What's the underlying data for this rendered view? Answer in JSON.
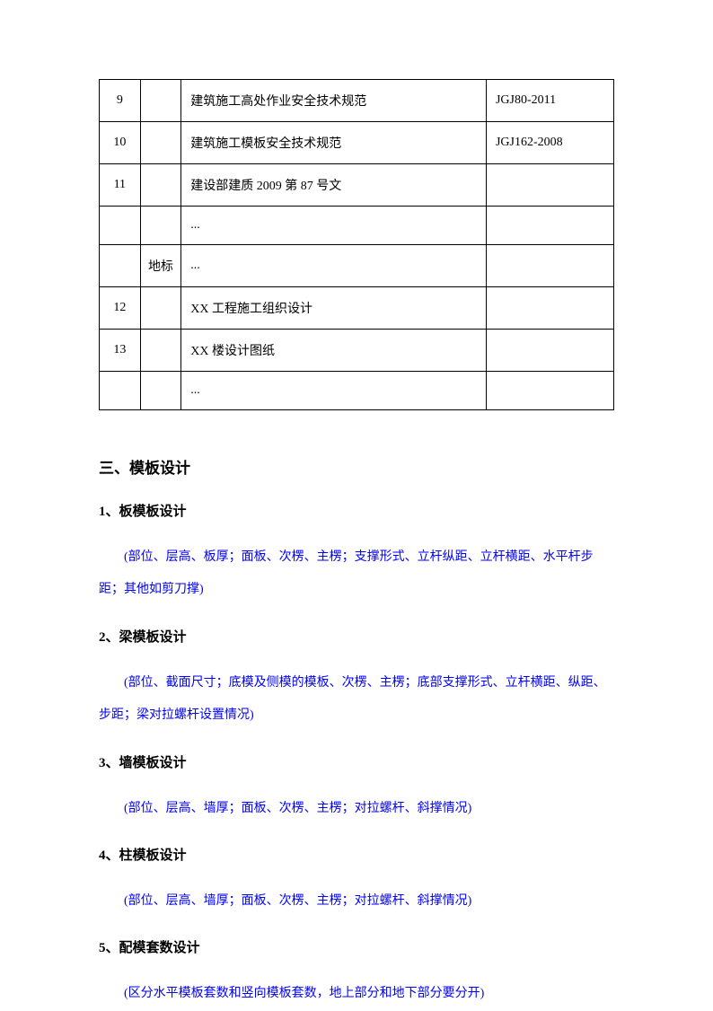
{
  "table": {
    "rows": [
      {
        "num": "9",
        "cat": "",
        "name": "建筑施工高处作业安全技术规范",
        "code": "JGJ80-2011"
      },
      {
        "num": "10",
        "cat": "",
        "name": "建筑施工模板安全技术规范",
        "code": "JGJ162-2008"
      },
      {
        "num": "11",
        "cat": "",
        "name": "建设部建质 2009 第 87 号文",
        "code": ""
      },
      {
        "num": "",
        "cat": "",
        "name": "...",
        "code": ""
      },
      {
        "num": "",
        "cat": "地标",
        "name": "...",
        "code": ""
      },
      {
        "num": "12",
        "cat": "",
        "name": "XX 工程施工组织设计",
        "code": ""
      },
      {
        "num": "13",
        "cat": "",
        "name": "XX 楼设计图纸",
        "code": ""
      },
      {
        "num": "",
        "cat": "",
        "name": "...",
        "code": ""
      }
    ]
  },
  "section": {
    "title": "三、模板设计",
    "subsections": [
      {
        "title": "1、板模板设计",
        "note": "(部位、层高、板厚；面板、次楞、主楞；支撑形式、立杆纵距、立杆横距、水平杆步距；其他如剪刀撑)"
      },
      {
        "title": "2、梁模板设计",
        "note": "(部位、截面尺寸；底模及侧模的模板、次楞、主楞；底部支撑形式、立杆横距、纵距、步距；梁对拉螺杆设置情况)"
      },
      {
        "title": "3、墙模板设计",
        "note": "(部位、层高、墙厚；面板、次楞、主楞；对拉螺杆、斜撑情况)"
      },
      {
        "title": "4、柱模板设计",
        "note": "(部位、层高、墙厚；面板、次楞、主楞；对拉螺杆、斜撑情况)"
      },
      {
        "title": "5、配模套数设计",
        "note": "(区分水平模板套数和竖向模板套数，地上部分和地下部分要分开)"
      }
    ]
  }
}
